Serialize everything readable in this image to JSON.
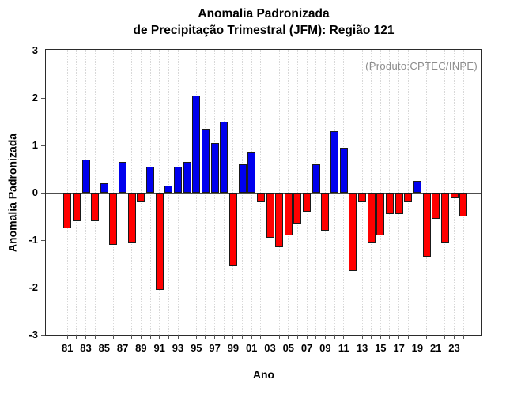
{
  "header": {
    "title_line1": "Anomalia Padronizada",
    "title_line2": "de Precipitação Trimestral (JFM): Região 121"
  },
  "chart_data": {
    "type": "bar",
    "title": "Anomalia Padronizada de Precipitação Trimestral (JFM): Região 121",
    "title_lines": [
      "Anomalia Padronizada",
      "de Precipitação Trimestral (JFM): Região 121"
    ],
    "xlabel": "Ano",
    "ylabel": "Anomalia Padronizada",
    "annotations": [
      "(Produto:CPTEC/INPE)"
    ],
    "ylim": [
      -3,
      3
    ],
    "yticks": [
      3,
      2,
      1,
      0,
      -1,
      -2,
      -3
    ],
    "grid": "vertical-dotted",
    "legend": "none",
    "x_label_every": 2,
    "categories": [
      "81",
      "82",
      "83",
      "84",
      "85",
      "86",
      "87",
      "88",
      "89",
      "90",
      "91",
      "92",
      "93",
      "94",
      "95",
      "96",
      "97",
      "98",
      "99",
      "00",
      "01",
      "02",
      "03",
      "04",
      "05",
      "06",
      "07",
      "08",
      "09",
      "10",
      "11",
      "12",
      "13",
      "14",
      "15",
      "16",
      "17",
      "18",
      "19",
      "20",
      "21",
      "22",
      "23",
      "24"
    ],
    "values": [
      -0.75,
      -0.6,
      0.7,
      -0.6,
      0.2,
      -1.1,
      0.65,
      -1.05,
      -0.2,
      0.55,
      -2.05,
      0.15,
      0.55,
      0.65,
      2.05,
      1.35,
      1.05,
      1.5,
      -1.55,
      0.6,
      0.85,
      -0.2,
      -0.95,
      -1.15,
      -0.9,
      -0.65,
      -0.4,
      0.6,
      -0.8,
      1.3,
      0.95,
      -1.65,
      -0.2,
      -1.05,
      -0.9,
      -0.45,
      -0.45,
      -0.2,
      0.25,
      -1.35,
      -0.55,
      -1.05,
      -0.1,
      -0.5
    ],
    "colors": {
      "positive": "#0000EE",
      "negative": "#FF0000"
    }
  }
}
